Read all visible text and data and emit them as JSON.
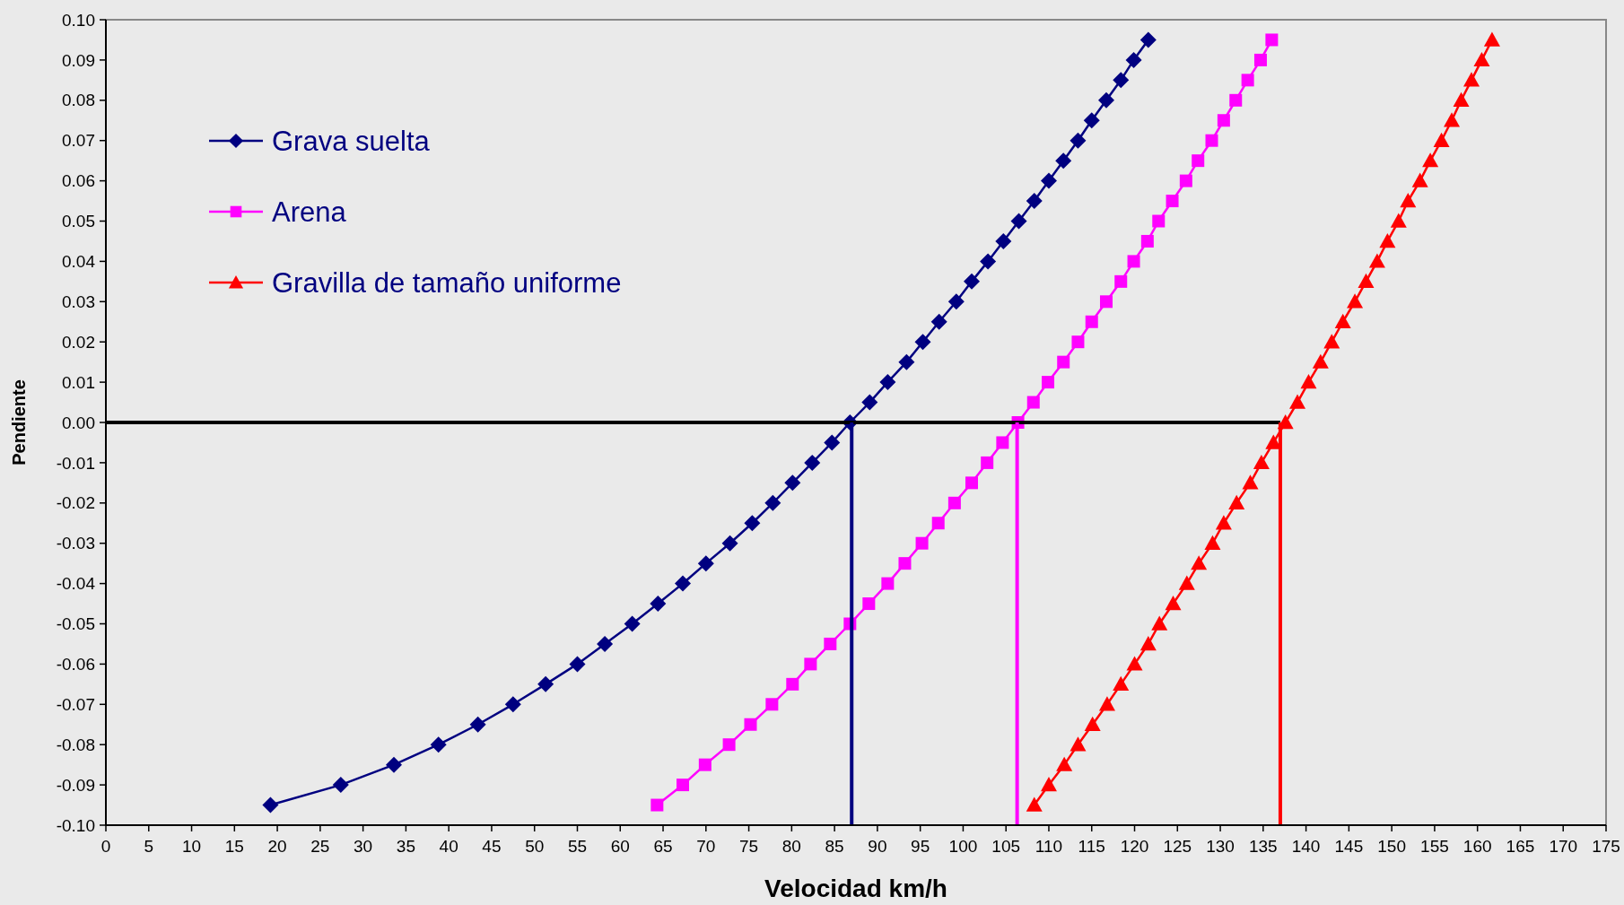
{
  "chart_data": {
    "type": "line",
    "xlabel": "Velocidad km/h",
    "ylabel": "Pendiente",
    "xlim": [
      0,
      175
    ],
    "ylim": [
      -0.1,
      0.1
    ],
    "xticks": [
      0,
      5,
      10,
      15,
      20,
      25,
      30,
      35,
      40,
      45,
      50,
      55,
      60,
      65,
      70,
      75,
      80,
      85,
      90,
      95,
      100,
      105,
      110,
      115,
      120,
      125,
      130,
      135,
      140,
      145,
      150,
      155,
      160,
      165,
      170,
      175
    ],
    "yticks": [
      {
        "value": -0.1,
        "label": "-0.10"
      },
      {
        "value": -0.09,
        "label": "-0.09"
      },
      {
        "value": -0.08,
        "label": "-0.08"
      },
      {
        "value": -0.07,
        "label": "-0.07"
      },
      {
        "value": -0.06,
        "label": "-0.06"
      },
      {
        "value": -0.05,
        "label": "-0.05"
      },
      {
        "value": -0.04,
        "label": "-0.04"
      },
      {
        "value": -0.03,
        "label": "-0.03"
      },
      {
        "value": -0.02,
        "label": "-0.02"
      },
      {
        "value": -0.01,
        "label": "-0.01"
      },
      {
        "value": 0,
        "label": "0.00"
      },
      {
        "value": 0.01,
        "label": "0.01"
      },
      {
        "value": 0.02,
        "label": "0.02"
      },
      {
        "value": 0.03,
        "label": "0.03"
      },
      {
        "value": 0.04,
        "label": "0.04"
      },
      {
        "value": 0.05,
        "label": "0.05"
      },
      {
        "value": 0.06,
        "label": "0.06"
      },
      {
        "value": 0.07,
        "label": "0.07"
      },
      {
        "value": 0.08,
        "label": "0.08"
      },
      {
        "value": 0.09,
        "label": "0.09"
      },
      {
        "value": 0.1,
        "label": "0.10"
      }
    ],
    "grid": false,
    "legend": "top left",
    "line_style": "solid",
    "series": [
      {
        "name": "Grava suelta",
        "color": "#000080",
        "marker": "diamond",
        "x": [
          19.2,
          27.4,
          33.6,
          38.8,
          43.4,
          47.5,
          51.3,
          55.0,
          58.2,
          61.4,
          64.4,
          67.3,
          70.0,
          72.8,
          75.4,
          77.8,
          80.1,
          82.4,
          84.7,
          86.8,
          89.1,
          91.2,
          93.4,
          95.3,
          97.2,
          99.2,
          101.0,
          102.9,
          104.7,
          106.5,
          108.3,
          110.0,
          111.7,
          113.4,
          115.0,
          116.7,
          118.4,
          119.9,
          121.6
        ],
        "values": [
          -0.095,
          -0.09,
          -0.085,
          -0.08,
          -0.075,
          -0.07,
          -0.065,
          -0.06,
          -0.055,
          -0.05,
          -0.045,
          -0.04,
          -0.035,
          -0.03,
          -0.025,
          -0.02,
          -0.015,
          -0.01,
          -0.005,
          0,
          0.005,
          0.01,
          0.015,
          0.02,
          0.025,
          0.03,
          0.035,
          0.04,
          0.045,
          0.05,
          0.055,
          0.06,
          0.065,
          0.07,
          0.075,
          0.08,
          0.085,
          0.09,
          0.095
        ]
      },
      {
        "name": "Arena",
        "color": "#ff00ff",
        "marker": "square",
        "x": [
          64.3,
          67.3,
          69.9,
          72.7,
          75.2,
          77.7,
          80.1,
          82.2,
          84.5,
          86.8,
          89.0,
          91.2,
          93.2,
          95.2,
          97.1,
          99.0,
          101.0,
          102.8,
          104.6,
          106.4,
          108.2,
          109.9,
          111.7,
          113.4,
          115.0,
          116.7,
          118.4,
          119.9,
          121.5,
          122.8,
          124.4,
          126.0,
          127.4,
          129.0,
          130.4,
          131.8,
          133.2,
          134.7,
          136.0
        ],
        "values": [
          -0.095,
          -0.09,
          -0.085,
          -0.08,
          -0.075,
          -0.07,
          -0.065,
          -0.06,
          -0.055,
          -0.05,
          -0.045,
          -0.04,
          -0.035,
          -0.03,
          -0.025,
          -0.02,
          -0.015,
          -0.01,
          -0.005,
          0,
          0.005,
          0.01,
          0.015,
          0.02,
          0.025,
          0.03,
          0.035,
          0.04,
          0.045,
          0.05,
          0.055,
          0.06,
          0.065,
          0.07,
          0.075,
          0.08,
          0.085,
          0.09,
          0.095
        ]
      },
      {
        "name": "Gravilla de tamaño uniforme",
        "color": "#ff0000",
        "marker": "triangle",
        "x": [
          108.3,
          110.0,
          111.8,
          113.4,
          115.1,
          116.8,
          118.4,
          120.0,
          121.6,
          122.9,
          124.5,
          126.1,
          127.5,
          129.1,
          130.4,
          131.9,
          133.5,
          134.8,
          136.2,
          137.6,
          139.0,
          140.3,
          141.7,
          143.0,
          144.3,
          145.7,
          147.0,
          148.3,
          149.5,
          150.8,
          151.9,
          153.3,
          154.5,
          155.8,
          157.0,
          158.1,
          159.3,
          160.5,
          161.7
        ],
        "values": [
          -0.095,
          -0.09,
          -0.085,
          -0.08,
          -0.075,
          -0.07,
          -0.065,
          -0.06,
          -0.055,
          -0.05,
          -0.045,
          -0.04,
          -0.035,
          -0.03,
          -0.025,
          -0.02,
          -0.015,
          -0.01,
          -0.005,
          0,
          0.005,
          0.01,
          0.015,
          0.02,
          0.025,
          0.03,
          0.035,
          0.04,
          0.045,
          0.05,
          0.055,
          0.06,
          0.065,
          0.07,
          0.075,
          0.08,
          0.085,
          0.09,
          0.095
        ]
      },
      {
        "type": "line",
        "color": "#000000",
        "marker": "none",
        "x": [
          0,
          137.0
        ],
        "values": [
          0,
          0
        ]
      },
      {
        "type": "line",
        "color": "#000080",
        "marker": "none",
        "x": [
          87.0,
          87.0
        ],
        "values": [
          -0.1,
          0
        ]
      },
      {
        "type": "line",
        "color": "#ff00ff",
        "marker": "none",
        "x": [
          106.3,
          106.3
        ],
        "values": [
          -0.1,
          0
        ]
      },
      {
        "type": "line",
        "color": "#ff0000",
        "marker": "none",
        "x": [
          137.0,
          137.0
        ],
        "values": [
          -0.1,
          0
        ]
      }
    ]
  }
}
